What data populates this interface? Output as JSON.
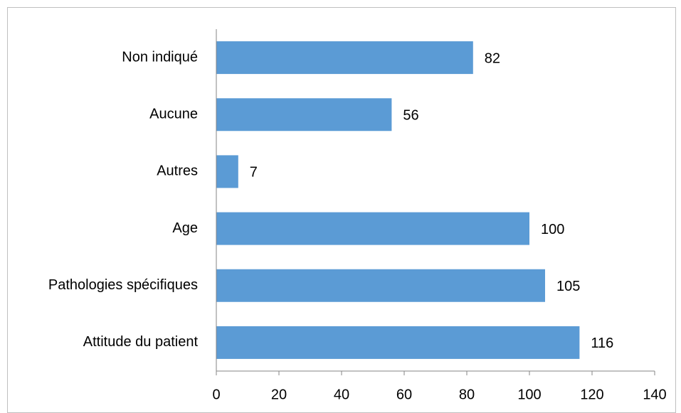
{
  "chart_data": {
    "type": "barh",
    "categories": [
      "Non indiqué",
      "Aucune",
      "Autres",
      "Age",
      "Pathologies spécifiques",
      "Attitude du patient"
    ],
    "values": [
      82,
      56,
      7,
      100,
      105,
      116
    ],
    "color": "#5b9bd5",
    "xlim": [
      0,
      140
    ],
    "xticks": [
      0,
      20,
      40,
      60,
      80,
      100,
      120,
      140
    ],
    "grid": false
  }
}
